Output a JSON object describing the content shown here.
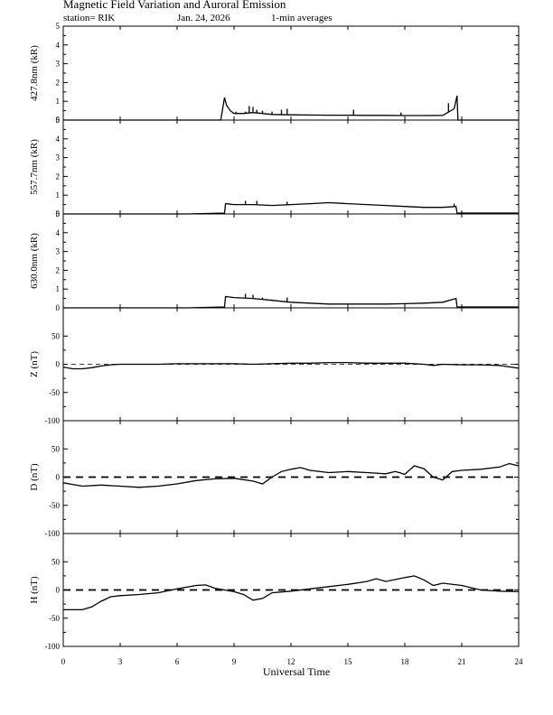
{
  "header": {
    "title": "Magnetic Field Variation and Auroral Emission",
    "station": "station= RIK",
    "date": "Jan. 24, 2026",
    "averaging": "1-min averages"
  },
  "chart_data": [
    {
      "type": "line",
      "ylabel": "427.8nm (kR)",
      "ylim": [
        0,
        5
      ],
      "yticks": [
        0,
        1,
        2,
        3,
        4,
        5
      ],
      "x": [
        0,
        8.3,
        8.5,
        8.6,
        8.8,
        9.0,
        9.5,
        10.0,
        10.5,
        11.0,
        12.0,
        13.0,
        14.0,
        15.0,
        16.0,
        17.0,
        18.0,
        19.0,
        20.0,
        20.6,
        20.75,
        20.8,
        24
      ],
      "values": [
        0,
        0,
        1.2,
        0.8,
        0.5,
        0.35,
        0.35,
        0.4,
        0.35,
        0.3,
        0.28,
        0.27,
        0.26,
        0.26,
        0.25,
        0.25,
        0.24,
        0.24,
        0.25,
        0.6,
        1.3,
        0,
        0
      ],
      "spikes": [
        {
          "x": 9.1,
          "y": 0.45
        },
        {
          "x": 9.6,
          "y": 0.45
        },
        {
          "x": 9.8,
          "y": 0.75
        },
        {
          "x": 10.0,
          "y": 0.7
        },
        {
          "x": 10.2,
          "y": 0.55
        },
        {
          "x": 10.5,
          "y": 0.5
        },
        {
          "x": 11.0,
          "y": 0.45
        },
        {
          "x": 11.5,
          "y": 0.55
        },
        {
          "x": 11.8,
          "y": 0.6
        },
        {
          "x": 15.3,
          "y": 0.55
        },
        {
          "x": 17.8,
          "y": 0.4
        },
        {
          "x": 20.3,
          "y": 0.9
        }
      ]
    },
    {
      "type": "line",
      "ylabel": "557.7nm (kR)",
      "ylim": [
        0,
        5
      ],
      "yticks": [
        0,
        1,
        2,
        3,
        4,
        5
      ],
      "x": [
        0,
        6.5,
        8.5,
        8.55,
        9.0,
        10.0,
        11.0,
        12.0,
        13.0,
        14.0,
        15.0,
        16.0,
        17.0,
        18.0,
        19.0,
        20.0,
        20.7,
        20.75,
        24
      ],
      "values": [
        0,
        0,
        0.05,
        0.55,
        0.5,
        0.5,
        0.45,
        0.5,
        0.55,
        0.6,
        0.55,
        0.5,
        0.45,
        0.4,
        0.35,
        0.35,
        0.4,
        0.05,
        0.05
      ],
      "spikes": [
        {
          "x": 9.6,
          "y": 0.7
        },
        {
          "x": 10.2,
          "y": 0.7
        },
        {
          "x": 11.8,
          "y": 0.65
        },
        {
          "x": 20.6,
          "y": 0.55
        }
      ]
    },
    {
      "type": "line",
      "ylabel": "630.0nm (kR)",
      "ylim": [
        0,
        5
      ],
      "yticks": [
        0,
        1,
        2,
        3,
        4,
        5
      ],
      "x": [
        0,
        6.5,
        8.5,
        8.55,
        9.0,
        10.0,
        11.0,
        12.0,
        13.0,
        14.0,
        15.0,
        16.0,
        17.0,
        18.0,
        19.0,
        20.0,
        20.7,
        20.75,
        24
      ],
      "values": [
        0,
        0,
        0.05,
        0.6,
        0.55,
        0.5,
        0.4,
        0.3,
        0.25,
        0.2,
        0.2,
        0.2,
        0.2,
        0.22,
        0.25,
        0.3,
        0.5,
        0.05,
        0.05
      ],
      "spikes": [
        {
          "x": 9.6,
          "y": 0.75
        },
        {
          "x": 10.0,
          "y": 0.7
        },
        {
          "x": 10.5,
          "y": 0.55
        },
        {
          "x": 11.0,
          "y": 0.45
        },
        {
          "x": 11.8,
          "y": 0.55
        }
      ]
    },
    {
      "type": "line",
      "ylabel": "Z (nT)",
      "ylim": [
        -100,
        100
      ],
      "yticks": [
        -100,
        -50,
        0,
        50
      ],
      "x": [
        0,
        0.5,
        1.0,
        1.5,
        2.0,
        2.5,
        3.0,
        4.0,
        5.0,
        6.0,
        7.0,
        8.0,
        9.0,
        10.0,
        11.0,
        12.0,
        13.0,
        14.0,
        15.0,
        16.0,
        17.0,
        18.0,
        19.0,
        19.5,
        20.0,
        21.0,
        22.0,
        23.0,
        24
      ],
      "values": [
        -5,
        -8,
        -8,
        -6,
        -3,
        -1,
        0,
        0,
        0,
        1,
        1,
        1,
        1,
        0,
        1,
        2,
        2,
        3,
        3,
        2,
        2,
        2,
        0,
        -2,
        0,
        -1,
        -1,
        -2,
        -7
      ]
    },
    {
      "type": "line",
      "ylabel": "D (nT)",
      "ylim": [
        -100,
        100
      ],
      "yticks": [
        -100,
        -50,
        0,
        50
      ],
      "x": [
        0,
        0.5,
        1.0,
        2.0,
        3.0,
        4.0,
        5.0,
        6.0,
        7.0,
        8.0,
        9.0,
        10.0,
        10.5,
        11.0,
        11.5,
        12.0,
        12.5,
        13.0,
        14.0,
        15.0,
        16.0,
        17.0,
        17.5,
        18.0,
        18.5,
        19.0,
        19.5,
        20.0,
        20.5,
        21.0,
        22.0,
        23.0,
        23.5,
        24
      ],
      "values": [
        -10,
        -13,
        -16,
        -14,
        -16,
        -18,
        -16,
        -12,
        -6,
        -3,
        -2,
        -7,
        -12,
        0,
        10,
        14,
        17,
        12,
        8,
        10,
        8,
        6,
        10,
        5,
        20,
        15,
        0,
        -5,
        10,
        12,
        14,
        18,
        24,
        20
      ]
    },
    {
      "type": "line",
      "ylabel": "H (nT)",
      "ylim": [
        -100,
        100
      ],
      "yticks": [
        -100,
        -50,
        0,
        50
      ],
      "x": [
        0,
        1.0,
        1.5,
        2.0,
        2.5,
        3.0,
        4.0,
        5.0,
        6.0,
        7.0,
        7.5,
        8.0,
        8.5,
        9.0,
        9.5,
        10.0,
        10.5,
        11.0,
        12.0,
        13.0,
        14.0,
        15.0,
        16.0,
        16.5,
        17.0,
        18.0,
        18.5,
        19.0,
        19.5,
        20.0,
        21.0,
        22.0,
        23.0,
        24
      ],
      "values": [
        -35,
        -35,
        -30,
        -20,
        -12,
        -10,
        -8,
        -5,
        2,
        8,
        9,
        3,
        0,
        -3,
        -8,
        -18,
        -15,
        -5,
        -2,
        2,
        6,
        10,
        15,
        20,
        15,
        22,
        25,
        18,
        8,
        12,
        8,
        0,
        -2,
        -3
      ]
    }
  ],
  "x_axis": {
    "label": "Universal Time",
    "ticks": [
      0,
      3,
      6,
      9,
      12,
      15,
      18,
      21,
      24
    ],
    "range": [
      0,
      24
    ]
  }
}
